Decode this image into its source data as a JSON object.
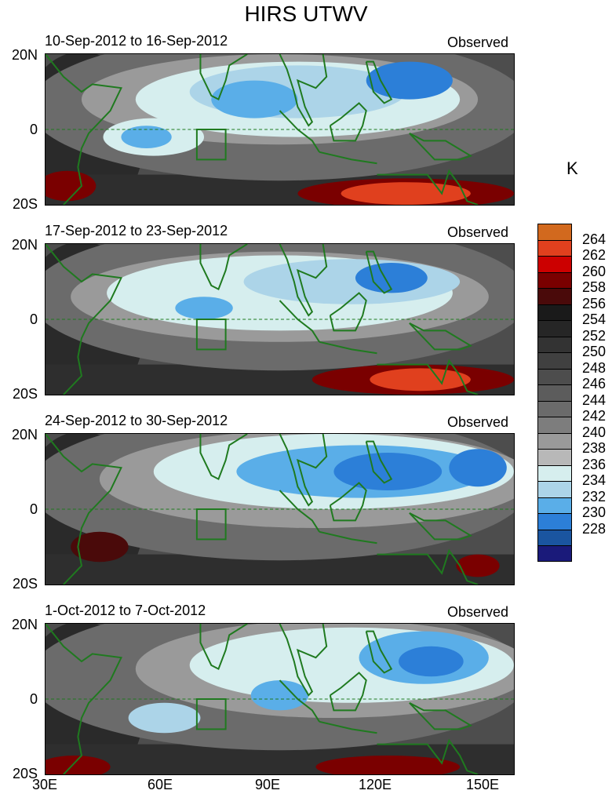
{
  "title": "HIRS UTWV",
  "panels": [
    {
      "date_range": "10-Sep-2012 to 16-Sep-2012",
      "label": "Observed"
    },
    {
      "date_range": "17-Sep-2012 to 23-Sep-2012",
      "label": "Observed"
    },
    {
      "date_range": "24-Sep-2012 to 30-Sep-2012",
      "label": "Observed"
    },
    {
      "date_range": "1-Oct-2012 to 7-Oct-2012",
      "label": "Observed"
    }
  ],
  "y_ticks": [
    "20N",
    "0",
    "20S"
  ],
  "x_ticks": [
    "30E",
    "60E",
    "90E",
    "120E",
    "150E"
  ],
  "colorbar": {
    "unit": "K",
    "labels": [
      "264",
      "262",
      "260",
      "258",
      "256",
      "254",
      "252",
      "250",
      "248",
      "246",
      "244",
      "242",
      "240",
      "238",
      "236",
      "234",
      "232",
      "230",
      "228"
    ],
    "colors": [
      "#d2691e",
      "#e0401e",
      "#cc0000",
      "#7a0000",
      "#4a0a0a",
      "#1a1a1a",
      "#262626",
      "#333333",
      "#404040",
      "#4d4d4d",
      "#5c5c5c",
      "#6b6b6b",
      "#7d7d7d",
      "#9a9a9a",
      "#b8b8b8",
      "#d6eeee",
      "#acd4e8",
      "#5aaee8",
      "#2c7fd8",
      "#1a55a0",
      "#1a1a7a"
    ]
  },
  "map": {
    "lon_range": [
      "30E",
      "160E"
    ],
    "lat_range": [
      "20S",
      "20N"
    ],
    "box_region": "72E-80E, 8S-0"
  }
}
